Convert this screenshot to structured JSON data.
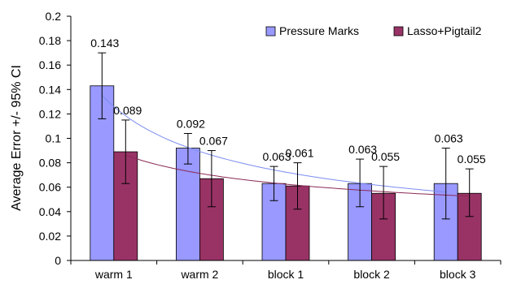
{
  "chart_data": {
    "type": "bar",
    "categories": [
      "warm 1",
      "warm 2",
      "block 1",
      "block 2",
      "block 3"
    ],
    "series": [
      {
        "name": "Pressure Marks",
        "color": "#9999ff",
        "values": [
          0.143,
          0.092,
          0.063,
          0.063,
          0.063
        ],
        "ci_low": [
          0.116,
          0.079,
          0.049,
          0.044,
          0.034
        ],
        "ci_high": [
          0.17,
          0.104,
          0.077,
          0.083,
          0.092
        ],
        "labels": [
          "0.143",
          "0.092",
          "0.063",
          "0.063",
          "0.063"
        ]
      },
      {
        "name": "Lasso+Pigtail2",
        "color": "#993366",
        "values": [
          0.089,
          0.067,
          0.061,
          0.055,
          0.055
        ],
        "ci_low": [
          0.063,
          0.044,
          0.042,
          0.034,
          0.036
        ],
        "ci_high": [
          0.115,
          0.09,
          0.08,
          0.077,
          0.075
        ],
        "labels": [
          "0.089",
          "0.067",
          "0.061",
          "0.055",
          "0.055"
        ]
      }
    ],
    "trendlines": [
      {
        "series": "Pressure Marks",
        "color": "#7b8cf0",
        "type": "power"
      },
      {
        "series": "Lasso+Pigtail2",
        "color": "#8b2a55",
        "type": "power"
      }
    ],
    "ylabel": "Average Error +/- 95% CI",
    "xlabel": "",
    "title": "",
    "ylim": [
      0,
      0.2
    ],
    "yticks": [
      "0",
      "0.02",
      "0.04",
      "0.06",
      "0.08",
      "0.1",
      "0.12",
      "0.14",
      "0.16",
      "0.18",
      "0.2"
    ],
    "grid": false,
    "legend_position": "top-right"
  }
}
